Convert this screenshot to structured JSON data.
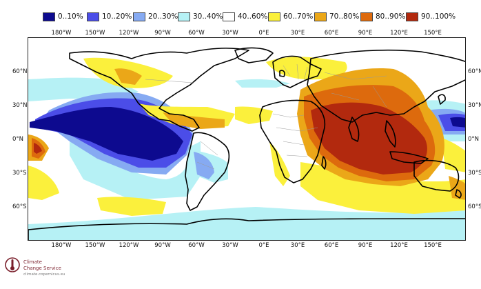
{
  "legend": [
    {
      "label": "0..10%",
      "color": "#0d0a8f"
    },
    {
      "label": "10..20%",
      "color": "#4b4de8"
    },
    {
      "label": "20..30%",
      "color": "#86aaf2"
    },
    {
      "label": "30..40%",
      "color": "#b6f1f5"
    },
    {
      "label": "40..60%",
      "color": "#ffffff"
    },
    {
      "label": "60..70%",
      "color": "#fbf03c"
    },
    {
      "label": "70..80%",
      "color": "#eba718"
    },
    {
      "label": "80..90%",
      "color": "#dd6a0d"
    },
    {
      "label": "90..100%",
      "color": "#b2290e"
    }
  ],
  "lon_ticks": [
    "180°W",
    "150°W",
    "120°W",
    "90°W",
    "60°W",
    "30°W",
    "0°E",
    "30°E",
    "60°E",
    "90°E",
    "120°E",
    "150°E"
  ],
  "lat_ticks": [
    "60°N",
    "30°N",
    "0°N",
    "30°S",
    "60°S"
  ],
  "logo": {
    "line1": "Climate",
    "line2": "Change Service",
    "url": "climate.copernicus.eu"
  }
}
